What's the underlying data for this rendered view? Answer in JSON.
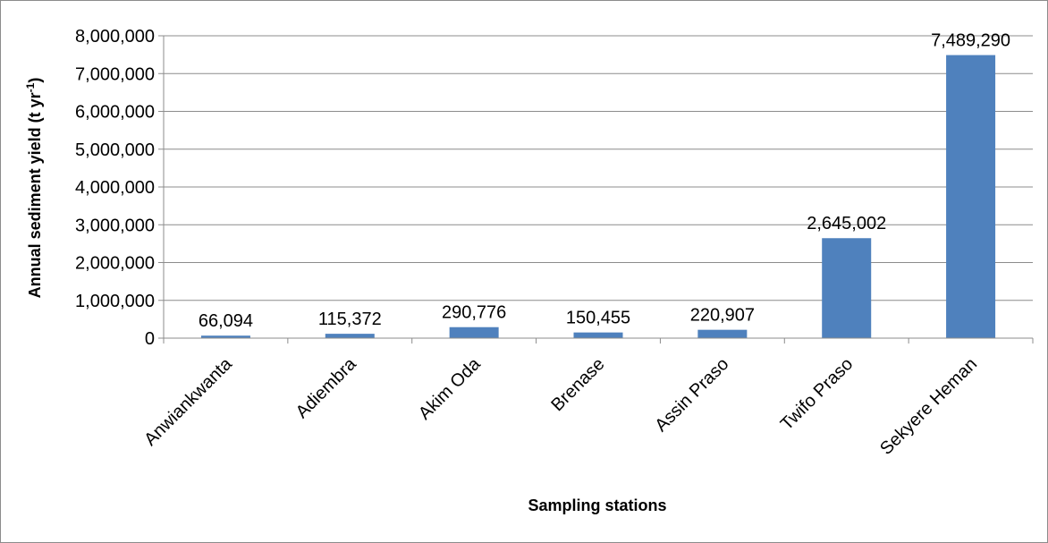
{
  "chart_data": {
    "type": "bar",
    "categories": [
      "Anwiankwanta",
      "Adiembra",
      "Akim Oda",
      "Brenase",
      "Assin Praso",
      "Twifo Praso",
      "Sekyere Heman"
    ],
    "values": [
      66094,
      115372,
      290776,
      150455,
      220907,
      2645002,
      7489290
    ],
    "data_labels": [
      "66,094",
      "115,372",
      "290,776",
      "150,455",
      "220,907",
      "2,645,002",
      "7,489,290"
    ],
    "xlabel": "Sampling stations",
    "ylabel": "Annual sediment yield (t yr",
    "ylabel_superscript": "-1",
    "ylabel_suffix": ")",
    "ylim": [
      0,
      8000000
    ],
    "yticks": [
      0,
      1000000,
      2000000,
      3000000,
      4000000,
      5000000,
      6000000,
      7000000,
      8000000
    ],
    "ytick_labels": [
      "0",
      "1,000,000",
      "2,000,000",
      "3,000,000",
      "4,000,000",
      "5,000,000",
      "6,000,000",
      "7,000,000",
      "8,000,000"
    ],
    "grid": true,
    "legend": "none",
    "bar_color": "#4f81bd",
    "grid_color": "#8c8c8c"
  }
}
